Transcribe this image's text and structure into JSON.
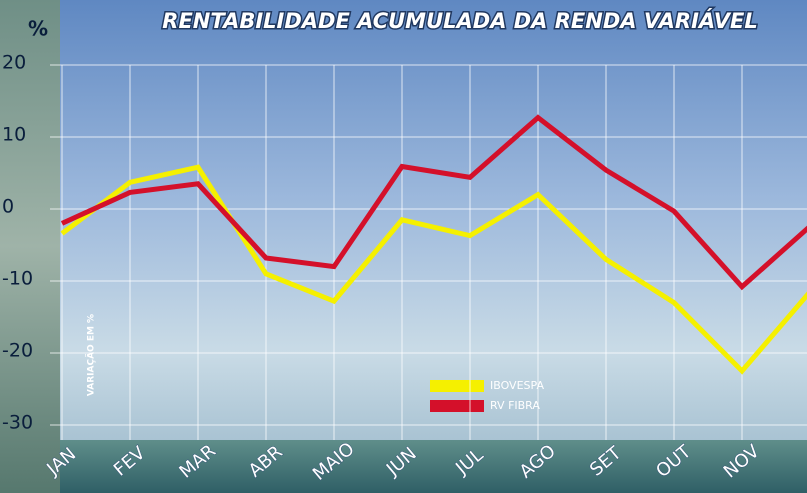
{
  "chart_data": {
    "type": "line",
    "title": "RENTABILIDADE ACUMULADA DA RENDA VARIÁVEL",
    "y_unit": "%",
    "y_axis_label": "VARIAÇÃO EM %",
    "categories": [
      "JAN",
      "FEV",
      "MAR",
      "ABR",
      "MAIO",
      "JUN",
      "JUL",
      "AGO",
      "SET",
      "OUT",
      "NOV",
      null
    ],
    "series": [
      {
        "name": "IBOVESPA",
        "color": "#f5f000",
        "values": [
          -3.4,
          3.7,
          5.8,
          -9,
          -12.8,
          -1.5,
          -3.7,
          2,
          -7,
          -13,
          -22.5,
          -11.5
        ]
      },
      {
        "name": "RV FIBRA",
        "color": "#d4102a",
        "values": [
          -2,
          2.3,
          3.5,
          -6.8,
          -8,
          5.9,
          4.4,
          12.7,
          5.4,
          -0.3,
          -10.8,
          -2.4
        ]
      }
    ],
    "ylim": [
      -30,
      20
    ],
    "yticks": [
      -30,
      -20,
      -10,
      0,
      10,
      20
    ],
    "grid": true
  }
}
